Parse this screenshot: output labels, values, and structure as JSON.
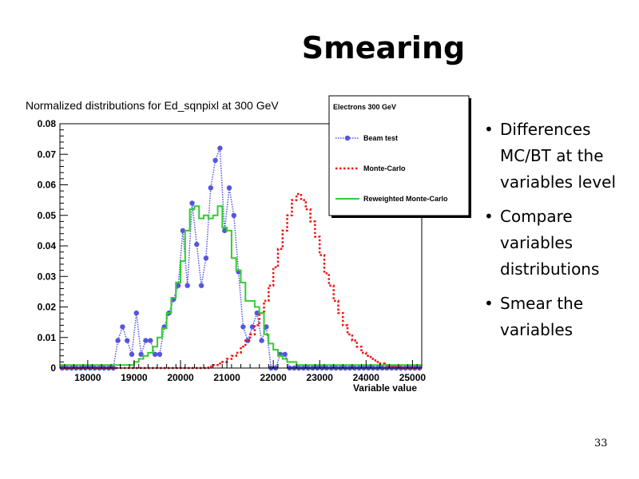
{
  "slide": {
    "title": "Smearing",
    "bullets": [
      "Differences MC/BT at the variables level",
      "Compare variables distributions",
      "Smear the variables"
    ],
    "page_number": "33"
  },
  "chart_data": {
    "type": "line",
    "title": "Normalized distributions for Ed_sqnpixl at 300 GeV",
    "xlabel": "Variable value",
    "ylabel": "",
    "xlim": [
      17400,
      25200
    ],
    "ylim": [
      0,
      0.08
    ],
    "x_ticks": [
      18000,
      19000,
      20000,
      21000,
      22000,
      23000,
      24000,
      25000
    ],
    "y_ticks": [
      0,
      0.01,
      0.02,
      0.03,
      0.04,
      0.05,
      0.06,
      0.07,
      0.08
    ],
    "y_tick_labels": [
      "0",
      "0.01",
      "0.02",
      "0.03",
      "0.04",
      "0.05",
      "0.06",
      "0.07",
      "0.08"
    ],
    "legend": {
      "title": "Electrons 300 GeV",
      "position": "top-right"
    },
    "series": [
      {
        "name": "Beam test",
        "style": "dotted-markers",
        "color": "#5555dd",
        "x": [
          17450,
          17550,
          17650,
          17750,
          17850,
          17950,
          18050,
          18150,
          18250,
          18350,
          18450,
          18550,
          18650,
          18750,
          18850,
          18950,
          19050,
          19150,
          19250,
          19350,
          19450,
          19550,
          19650,
          19750,
          19850,
          19950,
          20050,
          20150,
          20250,
          20350,
          20450,
          20550,
          20650,
          20750,
          20850,
          20950,
          21050,
          21150,
          21250,
          21350,
          21450,
          21550,
          21650,
          21750,
          21850,
          21950,
          22050,
          22150,
          22250,
          22350,
          22450,
          22550,
          22650,
          22750,
          22850,
          22950,
          23050,
          23150,
          23250,
          23350,
          23450,
          23550,
          23650,
          23750,
          23850,
          23950,
          24050,
          24150,
          24250,
          24350,
          24450,
          24550,
          24650,
          24750,
          24850,
          24950,
          25050,
          25150
        ],
        "y": [
          0,
          0,
          0,
          0,
          0,
          0,
          0,
          0,
          0,
          0,
          0,
          0,
          0.009,
          0.0135,
          0.009,
          0.0045,
          0.018,
          0.0045,
          0.009,
          0.009,
          0.0045,
          0.0045,
          0.0135,
          0.018,
          0.0225,
          0.027,
          0.045,
          0.027,
          0.054,
          0.0405,
          0.027,
          0.036,
          0.059,
          0.068,
          0.072,
          0.045,
          0.059,
          0.05,
          0.0315,
          0.0135,
          0.009,
          0.0135,
          0.018,
          0.009,
          0.0135,
          0,
          0,
          0.0045,
          0.0045,
          0,
          0,
          0,
          0,
          0,
          0,
          0,
          0,
          0,
          0,
          0,
          0,
          0,
          0,
          0,
          0,
          0,
          0,
          0,
          0,
          0,
          0,
          0,
          0,
          0,
          0,
          0,
          0,
          0
        ]
      },
      {
        "name": "Monte-Carlo",
        "style": "dotted-step",
        "color": "#ee1111",
        "x": [
          17450,
          17550,
          17650,
          17750,
          17850,
          17950,
          18050,
          18150,
          18250,
          18350,
          18450,
          18550,
          18650,
          18750,
          18850,
          18950,
          19050,
          19150,
          19250,
          19350,
          19450,
          19550,
          19650,
          19750,
          19850,
          19950,
          20050,
          20150,
          20250,
          20350,
          20450,
          20550,
          20650,
          20750,
          20850,
          20950,
          21050,
          21150,
          21250,
          21350,
          21450,
          21550,
          21650,
          21750,
          21850,
          21950,
          22050,
          22150,
          22250,
          22350,
          22450,
          22550,
          22650,
          22750,
          22850,
          22950,
          23050,
          23150,
          23250,
          23350,
          23450,
          23550,
          23650,
          23750,
          23850,
          23950,
          24050,
          24150,
          24250,
          24350,
          24450,
          24550,
          24650,
          24750,
          24850,
          24950,
          25050,
          25150
        ],
        "y": [
          0,
          0,
          0,
          0,
          0,
          0,
          0,
          0,
          0,
          0,
          0,
          0,
          0,
          0,
          0,
          0,
          0,
          0,
          0,
          0,
          0,
          0,
          0,
          0,
          0,
          0,
          0,
          0,
          0,
          0,
          0,
          0,
          0.0005,
          0.001,
          0.0015,
          0.002,
          0.003,
          0.004,
          0.005,
          0.007,
          0.009,
          0.011,
          0.014,
          0.018,
          0.022,
          0.027,
          0.033,
          0.039,
          0.045,
          0.05,
          0.055,
          0.057,
          0.055,
          0.052,
          0.048,
          0.043,
          0.037,
          0.031,
          0.027,
          0.022,
          0.018,
          0.014,
          0.011,
          0.009,
          0.007,
          0.005,
          0.004,
          0.003,
          0.002,
          0.0015,
          0.001,
          0.0005,
          0.0003,
          0.0002,
          0,
          0,
          0,
          0
        ]
      },
      {
        "name": "Reweighted Monte-Carlo",
        "style": "solid-step",
        "color": "#33cc33",
        "x": [
          17450,
          17550,
          17650,
          17750,
          17850,
          17950,
          18050,
          18150,
          18250,
          18350,
          18450,
          18550,
          18650,
          18750,
          18850,
          18950,
          19050,
          19150,
          19250,
          19350,
          19450,
          19550,
          19650,
          19750,
          19850,
          19950,
          20050,
          20150,
          20250,
          20350,
          20450,
          20550,
          20650,
          20750,
          20850,
          20950,
          21050,
          21150,
          21250,
          21350,
          21450,
          21550,
          21650,
          21750,
          21850,
          21950,
          22050,
          22150,
          22250,
          22350,
          22450,
          22550,
          22650,
          22750,
          22850,
          22950,
          23050,
          23150,
          23250,
          23350,
          23450,
          23550,
          23650,
          23750,
          23850,
          23950,
          24050,
          24150,
          24250,
          24350,
          24450,
          24550,
          24650,
          24750,
          24850,
          24950,
          25050,
          25150
        ],
        "y": [
          0.001,
          0.001,
          0.001,
          0.001,
          0.001,
          0.001,
          0.001,
          0.001,
          0.001,
          0.001,
          0.001,
          0.001,
          0.001,
          0.001,
          0.001,
          0.001,
          0.002,
          0.003,
          0.004,
          0.005,
          0.007,
          0.01,
          0.013,
          0.018,
          0.023,
          0.028,
          0.035,
          0.045,
          0.052,
          0.053,
          0.049,
          0.05,
          0.049,
          0.05,
          0.053,
          0.046,
          0.045,
          0.036,
          0.032,
          0.028,
          0.022,
          0.022,
          0.02,
          0.018,
          0.011,
          0.008,
          0.006,
          0.004,
          0.003,
          0.002,
          0.002,
          0.001,
          0.001,
          0.001,
          0.001,
          0.001,
          0.001,
          0.001,
          0.001,
          0.001,
          0.001,
          0.001,
          0.001,
          0.001,
          0.001,
          0.001,
          0.001,
          0.001,
          0.001,
          0.001,
          0.001,
          0.001,
          0.001,
          0.001,
          0.001,
          0.001,
          0.001,
          0.001
        ]
      }
    ]
  }
}
